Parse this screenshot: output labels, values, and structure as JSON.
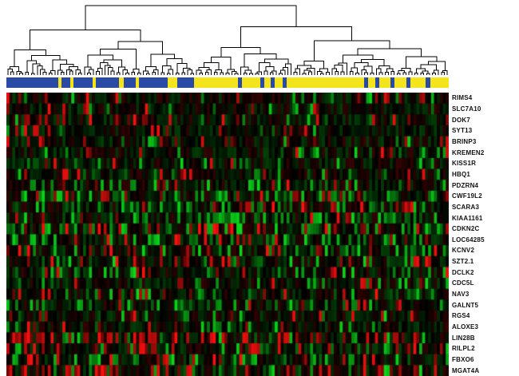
{
  "figure": {
    "background": "#ffffff",
    "colors": {
      "class_blue": "#2b4aa5",
      "class_yellow": "#f3e41c",
      "heat_red": "#ff2020",
      "heat_green": "#1fb41f",
      "heat_black": "#020202",
      "dendrogram_line": "#000000",
      "label_color": "#111111"
    }
  },
  "chart_data": {
    "type": "heatmap",
    "title": "",
    "n_cols": 150,
    "seed": 1234,
    "legend": "top strip shows two sample classes (blue / yellow) under a hierarchical clustering dendrogram; heatmap cells range green (low) - black (mid) - red (high)",
    "class_bar": {
      "transition_frac": 0.424,
      "segments": [
        {
          "color": "blue",
          "frac": 0.118
        },
        {
          "color": "yellow",
          "frac": 0.007
        },
        {
          "color": "blue",
          "frac": 0.02
        },
        {
          "color": "yellow",
          "frac": 0.007
        },
        {
          "color": "blue",
          "frac": 0.043
        },
        {
          "color": "yellow",
          "frac": 0.007
        },
        {
          "color": "blue",
          "frac": 0.052
        },
        {
          "color": "yellow",
          "frac": 0.011
        },
        {
          "color": "blue",
          "frac": 0.027
        },
        {
          "color": "yellow",
          "frac": 0.007
        },
        {
          "color": "blue",
          "frac": 0.065
        },
        {
          "color": "yellow",
          "frac": 0.022
        },
        {
          "color": "blue",
          "frac": 0.038
        },
        {
          "color": "yellow",
          "frac": 0.1
        },
        {
          "color": "blue",
          "frac": 0.009
        },
        {
          "color": "yellow",
          "frac": 0.042
        },
        {
          "color": "blue",
          "frac": 0.009
        },
        {
          "color": "yellow",
          "frac": 0.014
        },
        {
          "color": "blue",
          "frac": 0.009
        },
        {
          "color": "yellow",
          "frac": 0.018
        },
        {
          "color": "blue",
          "frac": 0.009
        },
        {
          "color": "yellow",
          "frac": 0.175
        },
        {
          "color": "blue",
          "frac": 0.009
        },
        {
          "color": "yellow",
          "frac": 0.016
        },
        {
          "color": "blue",
          "frac": 0.01
        },
        {
          "color": "yellow",
          "frac": 0.024
        },
        {
          "color": "blue",
          "frac": 0.009
        },
        {
          "color": "yellow",
          "frac": 0.028
        },
        {
          "color": "blue",
          "frac": 0.009
        },
        {
          "color": "yellow",
          "frac": 0.034
        },
        {
          "color": "blue",
          "frac": 0.01
        },
        {
          "color": "yellow",
          "frac": 0.042
        }
      ]
    },
    "rows": [
      {
        "label": "RIMS4",
        "pr_b": 0.08,
        "pg_b": 0.05,
        "pr_y": 0.07,
        "pg_y": 0.1
      },
      {
        "label": "SLC7A10",
        "pr_b": 0.12,
        "pg_b": 0.05,
        "pr_y": 0.06,
        "pg_y": 0.08
      },
      {
        "label": "DOK7",
        "pr_b": 0.18,
        "pg_b": 0.04,
        "pr_y": 0.05,
        "pg_y": 0.08
      },
      {
        "label": "SYT13",
        "pr_b": 0.1,
        "pg_b": 0.06,
        "pr_y": 0.05,
        "pg_y": 0.08
      },
      {
        "label": "BRINP3",
        "pr_b": 0.08,
        "pg_b": 0.05,
        "pr_y": 0.08,
        "pg_y": 0.06
      },
      {
        "label": "KREMEN2",
        "pr_b": 0.08,
        "pg_b": 0.06,
        "pr_y": 0.06,
        "pg_y": 0.08
      },
      {
        "label": "KISS1R",
        "pr_b": 0.07,
        "pg_b": 0.08,
        "pr_y": 0.06,
        "pg_y": 0.1
      },
      {
        "label": "HBQ1",
        "pr_b": 0.1,
        "pg_b": 0.06,
        "pr_y": 0.06,
        "pg_y": 0.12
      },
      {
        "label": "PDZRN4",
        "pr_b": 0.06,
        "pg_b": 0.18,
        "pr_y": 0.05,
        "pg_y": 0.22
      },
      {
        "label": "CWF19L2",
        "pr_b": 0.1,
        "pg_b": 0.25,
        "pr_y": 0.12,
        "pg_y": 0.3
      },
      {
        "label": "SCARA3",
        "pr_b": 0.08,
        "pg_b": 0.3,
        "pr_y": 0.1,
        "pg_y": 0.25
      },
      {
        "label": "KIAA1161",
        "pr_b": 0.06,
        "pg_b": 0.22,
        "pr_y": 0.08,
        "pg_y": 0.25
      },
      {
        "label": "CDKN2C",
        "pr_b": 0.08,
        "pg_b": 0.35,
        "pr_y": 0.12,
        "pg_y": 0.3
      },
      {
        "label": "LOC64285",
        "pr_b": 0.06,
        "pg_b": 0.28,
        "pr_y": 0.12,
        "pg_y": 0.25
      },
      {
        "label": "KCNV2",
        "pr_b": 0.1,
        "pg_b": 0.15,
        "pr_y": 0.1,
        "pg_y": 0.15
      },
      {
        "label": "SZT2.1",
        "pr_b": 0.18,
        "pg_b": 0.15,
        "pr_y": 0.12,
        "pg_y": 0.2
      },
      {
        "label": "DCLK2",
        "pr_b": 0.06,
        "pg_b": 0.25,
        "pr_y": 0.08,
        "pg_y": 0.2
      },
      {
        "label": "CDC5L",
        "pr_b": 0.08,
        "pg_b": 0.1,
        "pr_y": 0.08,
        "pg_y": 0.12
      },
      {
        "label": "NAV3",
        "pr_b": 0.14,
        "pg_b": 0.1,
        "pr_y": 0.06,
        "pg_y": 0.12
      },
      {
        "label": "GALNT5",
        "pr_b": 0.08,
        "pg_b": 0.25,
        "pr_y": 0.1,
        "pg_y": 0.22
      },
      {
        "label": "RGS4",
        "pr_b": 0.1,
        "pg_b": 0.1,
        "pr_y": 0.08,
        "pg_y": 0.1
      },
      {
        "label": "ALOXE3",
        "pr_b": 0.06,
        "pg_b": 0.08,
        "pr_y": 0.06,
        "pg_y": 0.1
      },
      {
        "label": "LIN28B",
        "pr_b": 0.45,
        "pg_b": 0.05,
        "pr_y": 0.18,
        "pg_y": 0.1
      },
      {
        "label": "RILPL2",
        "pr_b": 0.2,
        "pg_b": 0.12,
        "pr_y": 0.15,
        "pg_y": 0.18
      },
      {
        "label": "FBXO6",
        "pr_b": 0.15,
        "pg_b": 0.18,
        "pr_y": 0.12,
        "pg_y": 0.2
      },
      {
        "label": "MGAT4A",
        "pr_b": 0.25,
        "pg_b": 0.1,
        "pr_y": 0.12,
        "pg_y": 0.15
      }
    ]
  }
}
